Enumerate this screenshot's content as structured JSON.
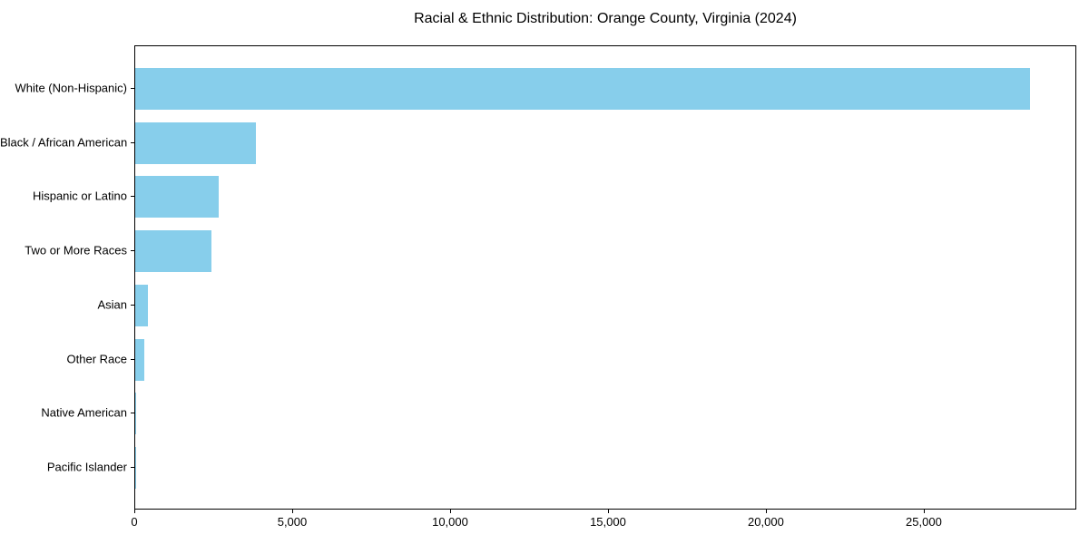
{
  "chart_data": {
    "type": "bar",
    "orientation": "horizontal",
    "title": "Racial & Ethnic Distribution: Orange County, Virginia (2024)",
    "xlabel": "",
    "ylabel": "",
    "categories": [
      "White (Non-Hispanic)",
      "Black / African American",
      "Hispanic or Latino",
      "Two or More Races",
      "Asian",
      "Other Race",
      "Native American",
      "Pacific Islander"
    ],
    "values": [
      28400,
      3820,
      2640,
      2410,
      395,
      290,
      30,
      10
    ],
    "xlim": [
      0,
      29830
    ],
    "x_ticks": [
      {
        "value": 0,
        "label": "0"
      },
      {
        "value": 5000,
        "label": "5,000"
      },
      {
        "value": 10000,
        "label": "10,000"
      },
      {
        "value": 15000,
        "label": "15,000"
      },
      {
        "value": 20000,
        "label": "20,000"
      },
      {
        "value": 25000,
        "label": "25,000"
      }
    ],
    "bar_color": "#87CEEB",
    "axis_color": "#000000",
    "text_color": "#000000",
    "plot_background": "#ffffff",
    "grid": false,
    "legend": null
  }
}
